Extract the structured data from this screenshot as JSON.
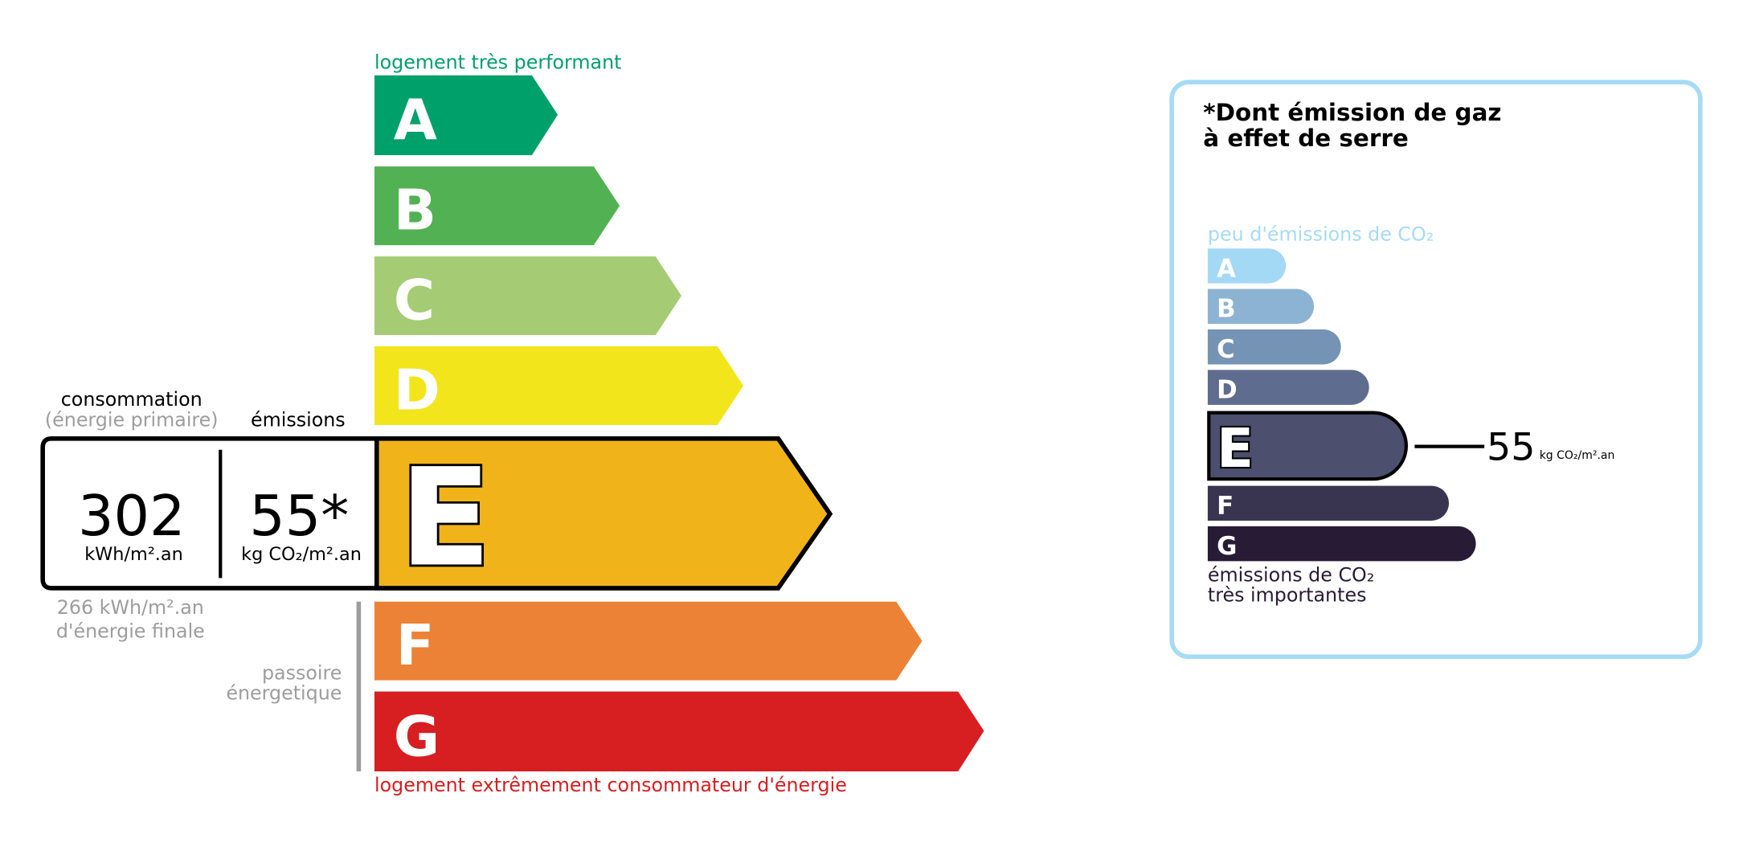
{
  "energy": {
    "top_label": "logement très performant",
    "bottom_label": "logement extrêmement consommateur d'énergie",
    "classes": [
      {
        "letter": "A",
        "color": "#00a06a"
      },
      {
        "letter": "B",
        "color": "#52b153"
      },
      {
        "letter": "C",
        "color": "#a5cc74"
      },
      {
        "letter": "D",
        "color": "#f2e51c"
      },
      {
        "letter": "E",
        "color": "#f0b41a"
      },
      {
        "letter": "F",
        "color": "#ec8236"
      },
      {
        "letter": "G",
        "color": "#d71e21"
      }
    ],
    "current_class": "E",
    "consumption_header": "consommation",
    "consumption_subheader": "(énergie primaire)",
    "emissions_header": "émissions",
    "consumption_value": "302",
    "consumption_unit": "kWh/m².an",
    "emissions_value": "55*",
    "emissions_unit": "kg CO₂/m².an",
    "final_energy_line1": "266 kWh/m².an",
    "final_energy_line2": "d'énergie finale",
    "passoire_line1": "passoire",
    "passoire_line2": "énergetique"
  },
  "ges": {
    "title_line1": "*Dont émission de gaz",
    "title_line2": "à effet de serre",
    "top_label": "peu d'émissions de CO₂",
    "bottom_label_line1": "émissions de CO₂",
    "bottom_label_line2": "très importantes",
    "border_color": "#a6dbf5",
    "classes": [
      {
        "letter": "A",
        "color": "#a4d9f6"
      },
      {
        "letter": "B",
        "color": "#8db3d3"
      },
      {
        "letter": "C",
        "color": "#7593b4"
      },
      {
        "letter": "D",
        "color": "#5e6c8f"
      },
      {
        "letter": "E",
        "color": "#4c4f6d"
      },
      {
        "letter": "F",
        "color": "#393551"
      },
      {
        "letter": "G",
        "color": "#281b35"
      }
    ],
    "current_class": "E",
    "value": "55",
    "unit": "kg CO₂/m².an"
  }
}
